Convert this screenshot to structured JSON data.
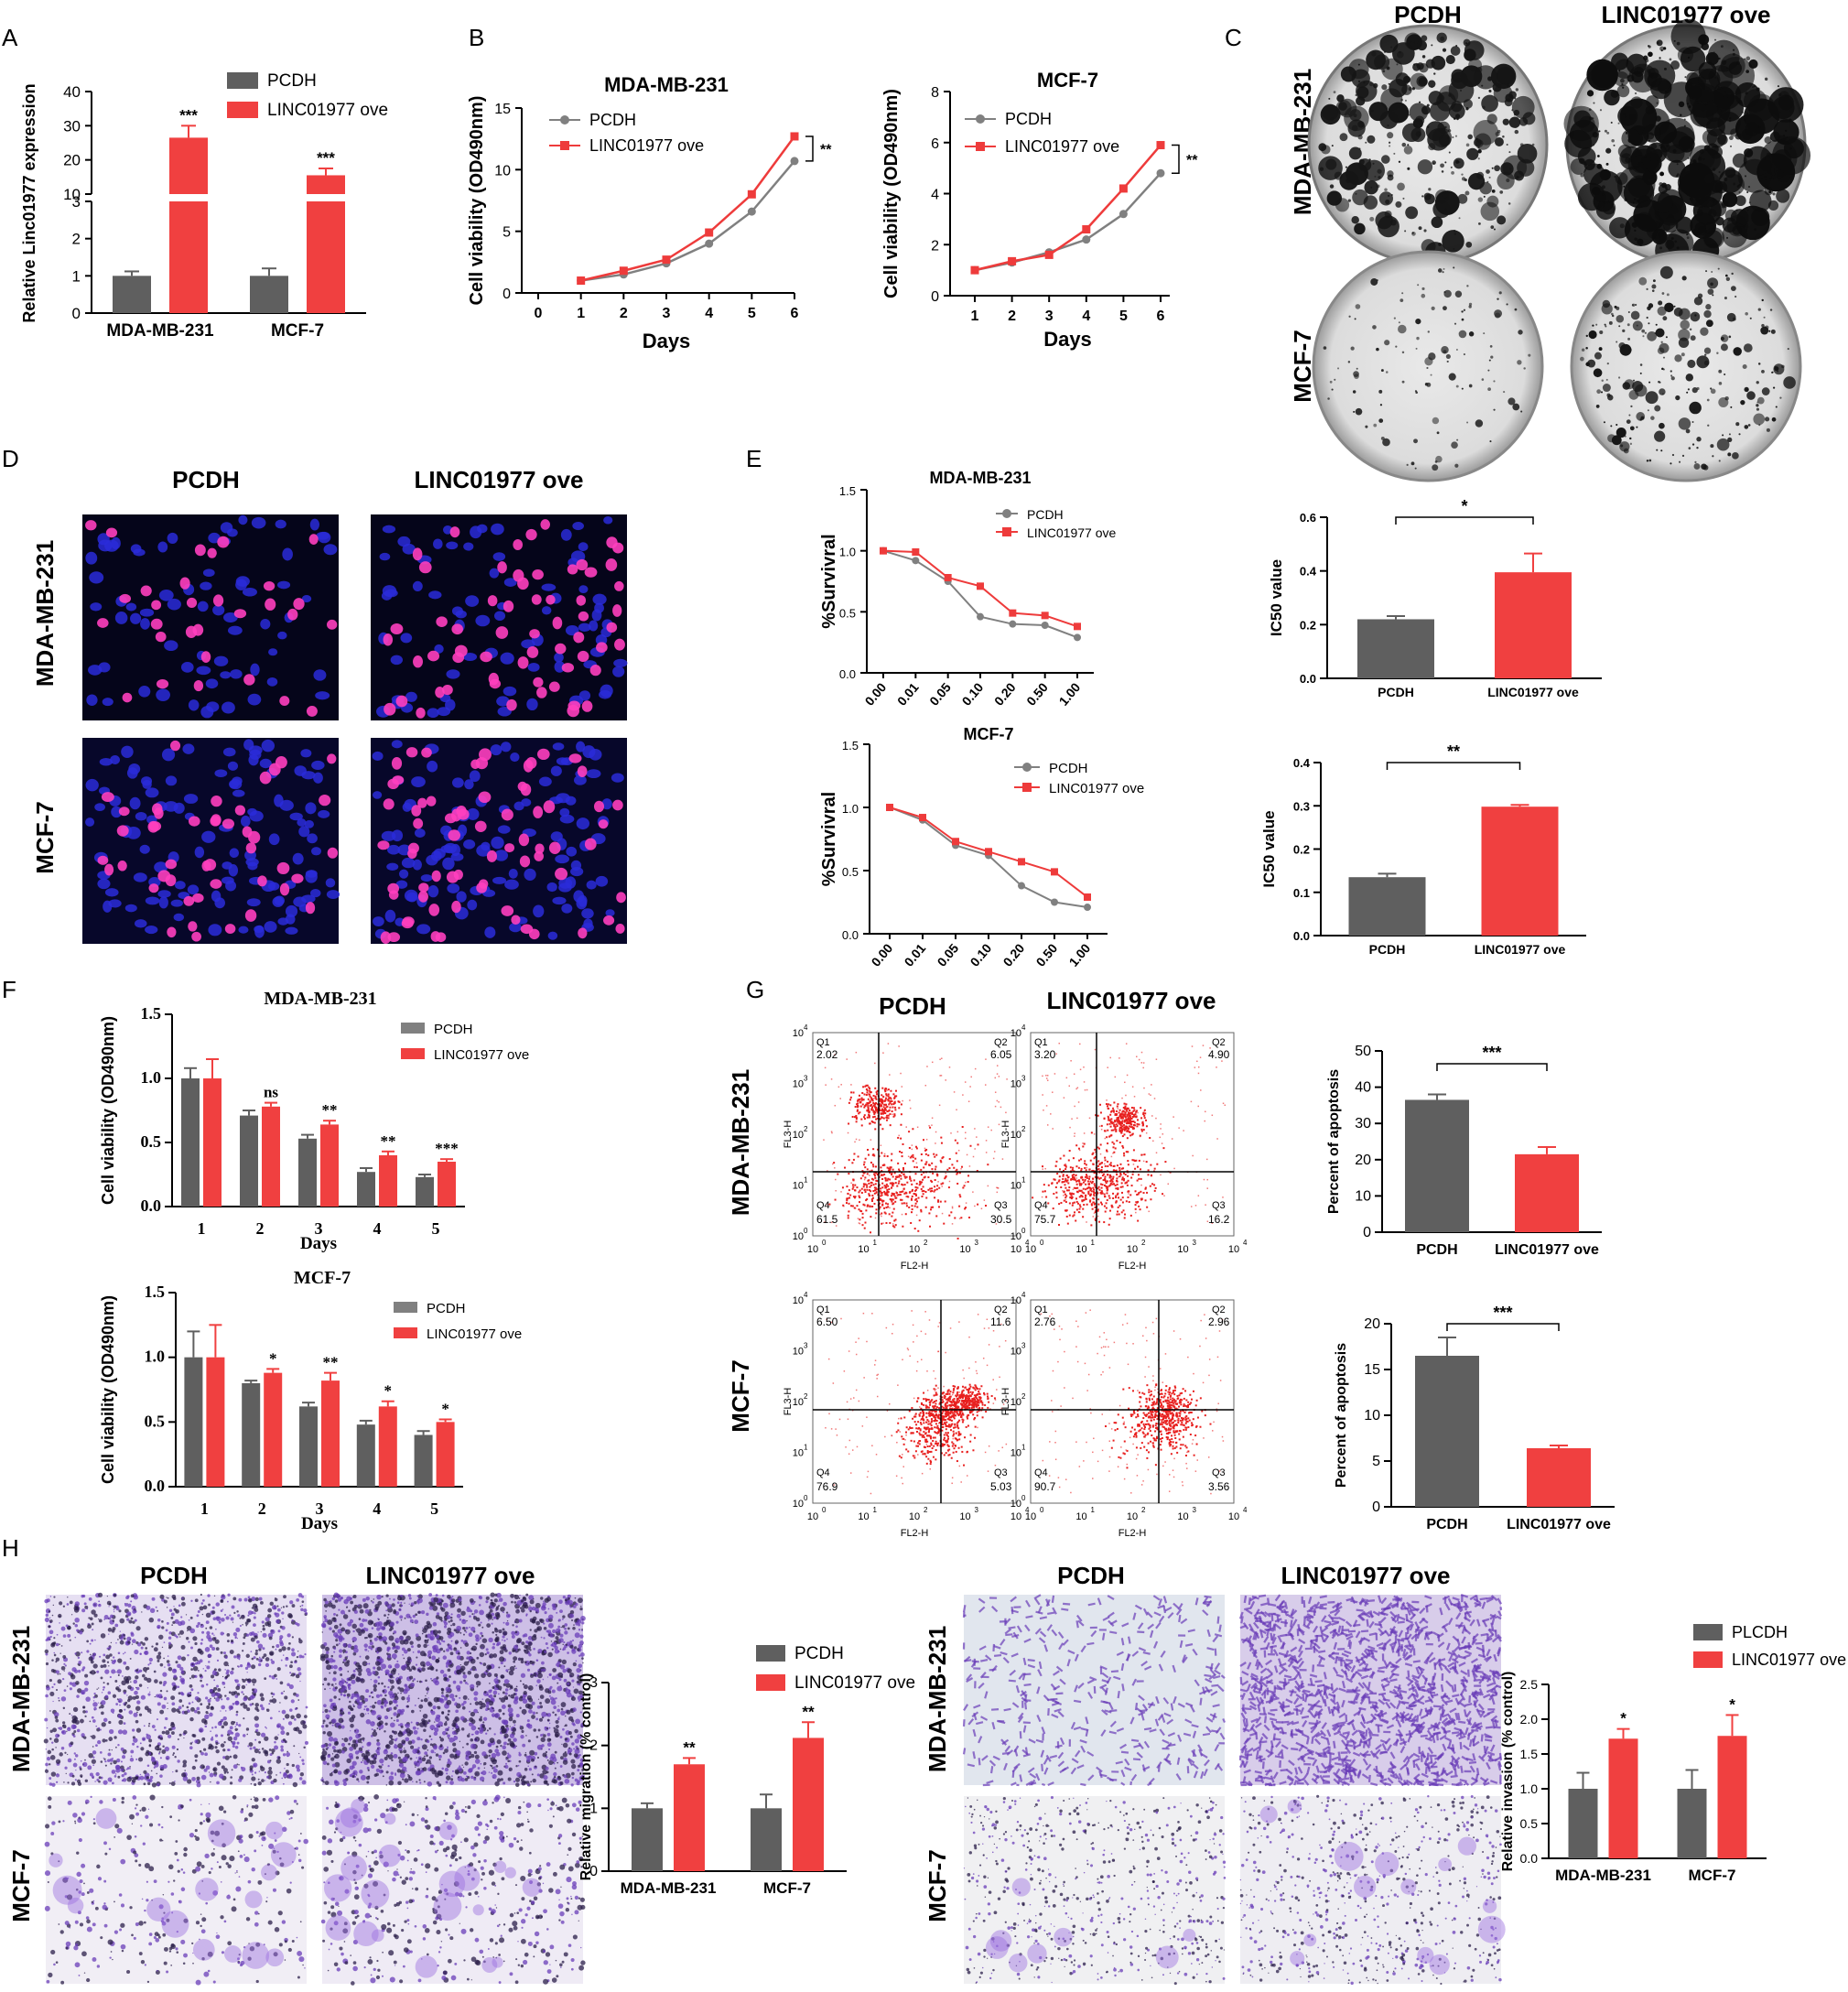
{
  "colors": {
    "control": "#5f5f5f",
    "overexp": "#f04040",
    "line_control": "#808080",
    "line_overexp": "#ee3b3b",
    "cell_bg": "#06061a",
    "nuclei_blue": "#2a2bd9",
    "nuclei_pink": "#ff3fbf",
    "crystal_violet": "#6a3db8",
    "plate_ink": "#111111"
  },
  "panel_letters": [
    "A",
    "B",
    "C",
    "D",
    "E",
    "F",
    "G",
    "H"
  ],
  "labels": {
    "pcdh": "PCDH",
    "ove": "LINC01977 ove",
    "plcdh": "PLCDH",
    "mda": "MDA-MB-231",
    "mcf": "MCF-7"
  },
  "flow": {
    "axis_x": "FL2-H",
    "axis_y": "FL3-H",
    "quadrants": {
      "mda_pcdh": {
        "q1": "Q1",
        "q1v": "2.02",
        "q2": "Q2",
        "q2v": "6.05",
        "q3": "Q3",
        "q3v": "30.5",
        "q4": "Q4",
        "q4v": "61.5"
      },
      "mda_ove": {
        "q1": "Q1",
        "q1v": "3.20",
        "q2": "Q2",
        "q2v": "4.90",
        "q3": "Q3",
        "q3v": "16.2",
        "q4": "Q4",
        "q4v": "75.7"
      },
      "mcf_pcdh": {
        "q1": "Q1",
        "q1v": "6.50",
        "q2": "Q2",
        "q2v": "11.6",
        "q3": "Q3",
        "q3v": "5.03",
        "q4": "Q4",
        "q4v": "76.9"
      },
      "mcf_ove": {
        "q1": "Q1",
        "q1v": "2.76",
        "q2": "Q2",
        "q2v": "2.96",
        "q3": "Q3",
        "q3v": "3.56",
        "q4": "Q4",
        "q4v": "90.7"
      }
    },
    "log_ticks": [
      "10",
      "10",
      "10",
      "10",
      "10"
    ],
    "log_exp": [
      "0",
      "1",
      "2",
      "3",
      "4"
    ]
  },
  "chart_data": [
    {
      "id": "A",
      "type": "bar",
      "ylabel": "Relative Linc01977 expression",
      "categories": [
        "MDA-MB-231",
        "MCF-7"
      ],
      "series": [
        {
          "name": "PCDH",
          "values": [
            1.0,
            1.0
          ],
          "err": [
            0.12,
            0.2
          ]
        },
        {
          "name": "LINC01977 ove",
          "values": [
            26.5,
            15.5
          ],
          "err": [
            3.5,
            2.0
          ]
        }
      ],
      "annotations": [
        "***",
        "***"
      ],
      "broken_axis": {
        "lower": [
          0,
          3
        ],
        "upper": [
          10,
          40
        ]
      },
      "yticks_lower": [
        "0",
        "1",
        "2",
        "3"
      ],
      "yticks_upper": [
        "10",
        "20",
        "30",
        "40"
      ]
    },
    {
      "id": "B1",
      "type": "line",
      "title": "MDA-MB-231",
      "xlabel": "Days",
      "ylabel": "Cell viability (OD490nm)",
      "x": [
        1,
        2,
        3,
        4,
        5,
        6
      ],
      "xlim": [
        0,
        6
      ],
      "ylim": [
        0,
        15
      ],
      "xticks": [
        "0",
        "1",
        "2",
        "3",
        "4",
        "5",
        "6"
      ],
      "yticks": [
        "0",
        "5",
        "10",
        "15"
      ],
      "series": [
        {
          "name": "PCDH",
          "values": [
            1.0,
            1.5,
            2.4,
            4.0,
            6.6,
            10.7
          ]
        },
        {
          "name": "LINC01977 ove",
          "values": [
            1.0,
            1.8,
            2.7,
            4.9,
            8.0,
            12.7
          ]
        }
      ],
      "annotation": "**"
    },
    {
      "id": "B2",
      "type": "line",
      "title": "MCF-7",
      "xlabel": "Days",
      "ylabel": "Cell viability (OD490nm)",
      "x": [
        1,
        2,
        3,
        4,
        5,
        6
      ],
      "xlim": [
        1,
        6
      ],
      "ylim": [
        0,
        8
      ],
      "xticks": [
        "1",
        "2",
        "3",
        "4",
        "5",
        "6"
      ],
      "yticks": [
        "0",
        "2",
        "4",
        "6",
        "8"
      ],
      "series": [
        {
          "name": "PCDH",
          "values": [
            1.0,
            1.3,
            1.7,
            2.2,
            3.2,
            4.8
          ]
        },
        {
          "name": "LINC01977 ove",
          "values": [
            1.0,
            1.35,
            1.6,
            2.6,
            4.2,
            5.9
          ]
        }
      ],
      "annotation": "**"
    },
    {
      "id": "E1",
      "type": "line",
      "title": "MDA-MB-231",
      "ylabel": "%Survivral",
      "categories": [
        "0.00",
        "0.01",
        "0.05",
        "0.10",
        "0.20",
        "0.50",
        "1.00"
      ],
      "ylim": [
        0,
        1.5
      ],
      "yticks": [
        "0.0",
        "0.5",
        "1.0",
        "1.5"
      ],
      "series": [
        {
          "name": "PCDH",
          "values": [
            1.0,
            0.92,
            0.75,
            0.46,
            0.4,
            0.39,
            0.29
          ]
        },
        {
          "name": "LINC01977 ove",
          "values": [
            1.0,
            0.99,
            0.78,
            0.71,
            0.49,
            0.47,
            0.38
          ]
        }
      ]
    },
    {
      "id": "E2",
      "type": "line",
      "title": "MCF-7",
      "ylabel": "%Survivral",
      "categories": [
        "0.00",
        "0.01",
        "0.05",
        "0.10",
        "0.20",
        "0.50",
        "1.00"
      ],
      "ylim": [
        0,
        1.5
      ],
      "yticks": [
        "0.0",
        "0.5",
        "1.0",
        "1.5"
      ],
      "series": [
        {
          "name": "PCDH",
          "values": [
            1.0,
            0.9,
            0.7,
            0.62,
            0.38,
            0.25,
            0.21
          ]
        },
        {
          "name": "LINC01977 ove",
          "values": [
            1.0,
            0.92,
            0.73,
            0.65,
            0.57,
            0.49,
            0.29
          ]
        }
      ]
    },
    {
      "id": "E3",
      "type": "bar",
      "ylabel": "IC50 value",
      "categories": [
        "PCDH",
        "LINC01977 ove"
      ],
      "values": [
        0.22,
        0.395
      ],
      "err": [
        0.012,
        0.07
      ],
      "ylim": [
        0,
        0.6
      ],
      "yticks": [
        "0.0",
        "0.2",
        "0.4",
        "0.6"
      ],
      "annotation": "*"
    },
    {
      "id": "E4",
      "type": "bar",
      "ylabel": "IC50 value",
      "categories": [
        "PCDH",
        "LINC01977 ove"
      ],
      "values": [
        0.135,
        0.298
      ],
      "err": [
        0.008,
        0.004
      ],
      "ylim": [
        0,
        0.4
      ],
      "yticks": [
        "0.0",
        "0.1",
        "0.2",
        "0.3",
        "0.4"
      ],
      "annotation": "**"
    },
    {
      "id": "F1",
      "type": "bar",
      "title": "MDA-MB-231",
      "xlabel": "Days",
      "ylabel": "Cell viability (OD490nm)",
      "categories": [
        "1",
        "2",
        "3",
        "4",
        "5"
      ],
      "ylim": [
        0,
        1.5
      ],
      "yticks": [
        "0.0",
        "0.5",
        "1.0",
        "1.5"
      ],
      "series": [
        {
          "name": "PCDH",
          "values": [
            1.0,
            0.71,
            0.53,
            0.27,
            0.23
          ],
          "err": [
            0.08,
            0.04,
            0.03,
            0.03,
            0.02
          ]
        },
        {
          "name": "LINC01977 ove",
          "values": [
            1.0,
            0.78,
            0.64,
            0.4,
            0.35
          ],
          "err": [
            0.15,
            0.03,
            0.03,
            0.03,
            0.02
          ]
        }
      ],
      "annotations": [
        "",
        "ns",
        "**",
        "**",
        "***"
      ]
    },
    {
      "id": "F2",
      "type": "bar",
      "title": "MCF-7",
      "xlabel": "Days",
      "ylabel": "Cell viability (OD490nm)",
      "categories": [
        "1",
        "2",
        "3",
        "4",
        "5"
      ],
      "ylim": [
        0,
        1.5
      ],
      "yticks": [
        "0.0",
        "0.5",
        "1.0",
        "1.5"
      ],
      "series": [
        {
          "name": "PCDH",
          "values": [
            1.0,
            0.8,
            0.62,
            0.48,
            0.4
          ],
          "err": [
            0.2,
            0.02,
            0.03,
            0.03,
            0.03
          ]
        },
        {
          "name": "LINC01977 ove",
          "values": [
            1.0,
            0.88,
            0.82,
            0.62,
            0.5
          ],
          "err": [
            0.25,
            0.03,
            0.06,
            0.04,
            0.02
          ]
        }
      ],
      "annotations": [
        "",
        "*",
        "**",
        "*",
        "*"
      ]
    },
    {
      "id": "G1",
      "type": "bar",
      "ylabel": "Percent of apoptosis",
      "categories": [
        "PCDH",
        "LINC01977 ove"
      ],
      "values": [
        36.5,
        21.5
      ],
      "err": [
        1.5,
        2.0
      ],
      "ylim": [
        0,
        50
      ],
      "yticks": [
        "0",
        "10",
        "20",
        "30",
        "40",
        "50"
      ],
      "annotation": "***"
    },
    {
      "id": "G2",
      "type": "bar",
      "ylabel": "Percent of apoptosis",
      "categories": [
        "PCDH",
        "LINC01977 ove"
      ],
      "values": [
        16.5,
        6.4
      ],
      "err": [
        2.0,
        0.3
      ],
      "ylim": [
        0,
        20
      ],
      "yticks": [
        "0",
        "5",
        "10",
        "15",
        "20"
      ],
      "annotation": "***"
    },
    {
      "id": "H1",
      "type": "bar",
      "ylabel": "Relative migration (% control)",
      "categories": [
        "MDA-MB-231",
        "MCF-7"
      ],
      "ylim": [
        0,
        3
      ],
      "yticks": [
        "0",
        "1",
        "2",
        "3"
      ],
      "series": [
        {
          "name": "PCDH",
          "values": [
            1.0,
            1.0
          ],
          "err": [
            0.08,
            0.22
          ]
        },
        {
          "name": "LINC01977 ove",
          "values": [
            1.7,
            2.12
          ],
          "err": [
            0.1,
            0.25
          ]
        }
      ],
      "annotations": [
        "**",
        "**"
      ]
    },
    {
      "id": "H2",
      "type": "bar",
      "ylabel": "Relative invasion (% control)",
      "categories": [
        "MDA-MB-231",
        "MCF-7"
      ],
      "ylim": [
        0,
        2.5
      ],
      "yticks": [
        "0.0",
        "0.5",
        "1.0",
        "1.5",
        "2.0",
        "2.5"
      ],
      "series": [
        {
          "name": "PLCDH",
          "values": [
            1.0,
            1.0
          ],
          "err": [
            0.23,
            0.27
          ]
        },
        {
          "name": "LINC01977 ove",
          "values": [
            1.72,
            1.76
          ],
          "err": [
            0.14,
            0.3
          ]
        }
      ],
      "annotations": [
        "*",
        "*"
      ]
    }
  ]
}
